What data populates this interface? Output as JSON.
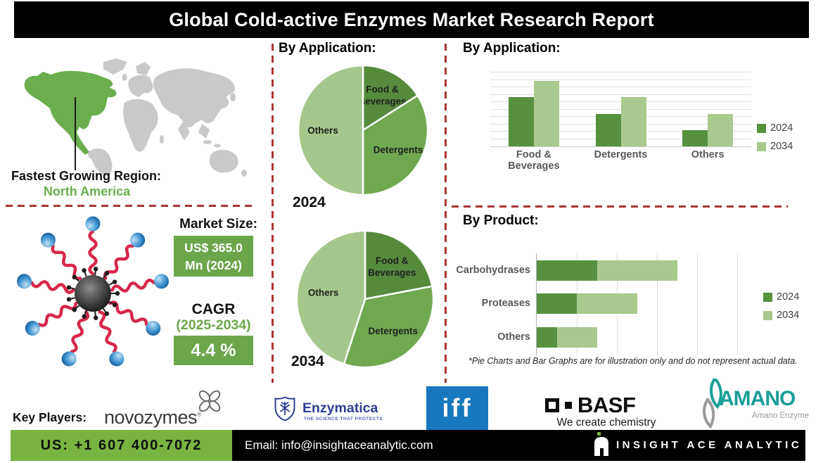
{
  "title": "Global Cold-active Enzymes Market Research Report",
  "region": {
    "label": "Fastest Growing Region:",
    "value": "North America"
  },
  "market_size": {
    "label": "Market Size:",
    "value_line1": "US$ 365.0",
    "value_line2": "Mn (2024)",
    "cagr_label": "CAGR",
    "cagr_period": "(2025-2034)",
    "cagr_value": "4.4 %"
  },
  "sections": {
    "pie_heading": "By Application:",
    "bar_heading": "By Application:",
    "product_heading": "By Product:",
    "footnote": "*Pie Charts and Bar Graphs are for illustration only and do not represent actual data."
  },
  "chart_data": [
    {
      "id": "pie-2024",
      "type": "pie",
      "title": "2024",
      "legend_position": "none",
      "slices": [
        {
          "label": "Food &\nBeverages",
          "value": 16,
          "color": "#568b3c"
        },
        {
          "label": "Detergents",
          "value": 34,
          "color": "#70a84f"
        },
        {
          "label": "Others",
          "value": 50,
          "color": "#a6c78c"
        }
      ]
    },
    {
      "id": "pie-2034",
      "type": "pie",
      "title": "2034",
      "legend_position": "none",
      "slices": [
        {
          "label": "Food &\nBeverages",
          "value": 22,
          "color": "#568b3c"
        },
        {
          "label": "Detergents",
          "value": 33,
          "color": "#70a84f"
        },
        {
          "label": "Others",
          "value": 45,
          "color": "#a6c78c"
        }
      ]
    },
    {
      "id": "application-bar",
      "type": "bar",
      "title": "By Application:",
      "categories": [
        "Food & Beverages",
        "Detergents",
        "Others"
      ],
      "series": [
        {
          "name": "2024",
          "color": "#579140",
          "values": [
            6.7,
            4.4,
            2.2
          ]
        },
        {
          "name": "2034",
          "color": "#a9c98e",
          "values": [
            8.9,
            6.7,
            4.4
          ]
        }
      ],
      "ylim": [
        0,
        10
      ],
      "grid": true,
      "legend_position": "right"
    },
    {
      "id": "product-bar",
      "type": "stacked-horizontal-bar",
      "title": "By Product:",
      "categories": [
        "Carbohydrases",
        "Proteases",
        "Others"
      ],
      "series": [
        {
          "name": "2024",
          "color": "#579140",
          "values": [
            1.5,
            1.0,
            0.5
          ]
        },
        {
          "name": "2034",
          "color": "#a9c98e",
          "values": [
            2.0,
            1.5,
            1.0
          ]
        }
      ],
      "xlim": [
        0,
        5.7
      ],
      "grid": true,
      "legend_position": "right"
    }
  ],
  "key_players": {
    "label": "Key Players:",
    "companies": [
      {
        "name": "novozymes",
        "mark": "®"
      },
      {
        "name": "Enzymatica",
        "tagline": "THE SCIENCE THAT PROTECTS"
      },
      {
        "name": "iff"
      },
      {
        "name": "BASF",
        "tagline": "We create chemistry"
      },
      {
        "name": "AMANO",
        "tagline": "Amano Enzyme"
      }
    ]
  },
  "footer": {
    "phone": "US: +1 607 400-7072",
    "email": "Email: info@insightaceanalytic.com",
    "brand": "INSIGHT ACE ANALYTIC"
  },
  "colors": {
    "accent_green": "#6ca64a",
    "dark_green": "#579140",
    "mid_green": "#70a84f",
    "light_green": "#a9c98e",
    "map_green": "#6aae4e",
    "divider_red": "#a93632",
    "footer_green": "#79b341",
    "iff_blue": "#1878be",
    "enzymatica_blue": "#2d3f96",
    "amano_teal": "#1a9e98"
  }
}
